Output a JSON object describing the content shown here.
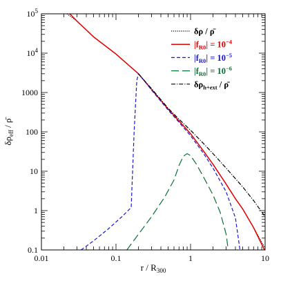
{
  "chart_data": {
    "type": "line",
    "xlabel": "r / R",
    "xlabel_sub": "300",
    "ylabel": "δρ",
    "ylabel_sub": "eff",
    "ylabel_tail": " / ρ̄",
    "xscale": "log",
    "yscale": "log",
    "xlim": [
      0.01,
      10
    ],
    "ylim": [
      0.1,
      100000
    ],
    "grid": false,
    "legend_position": "top-right",
    "x_ticks": [
      {
        "value": 0.01,
        "label": "0.01"
      },
      {
        "value": 0.1,
        "label": "0.1"
      },
      {
        "value": 1,
        "label": "1"
      },
      {
        "value": 10,
        "label": "10"
      }
    ],
    "y_ticks": [
      {
        "value": 0.1,
        "label": "0.1",
        "base": "0.1",
        "exp": ""
      },
      {
        "value": 1,
        "label": "1",
        "base": "1",
        "exp": ""
      },
      {
        "value": 10,
        "label": "10",
        "base": "10",
        "exp": ""
      },
      {
        "value": 100,
        "label": "100",
        "base": "100",
        "exp": ""
      },
      {
        "value": 1000,
        "label": "1000",
        "base": "1000",
        "exp": ""
      },
      {
        "value": 10000,
        "label": "10^4",
        "base": "10",
        "exp": "4"
      },
      {
        "value": 100000,
        "label": "10^5",
        "base": "10",
        "exp": "5"
      }
    ],
    "series": [
      {
        "name": "δρ / ρ̄",
        "legend_parts": {
          "main": "δρ / ρ̄",
          "sub": "",
          "tail": ""
        },
        "color": "#000000",
        "style": "dotted",
        "x": [
          0.022,
          0.03,
          0.05,
          0.1,
          0.2,
          0.3,
          0.5,
          0.7,
          1.0,
          1.5,
          2.0,
          3.0,
          4.0,
          5.0,
          7.0,
          10.0
        ],
        "y": [
          100000,
          65000,
          26000,
          9500,
          3000,
          1200,
          380,
          190,
          90,
          32,
          15,
          4.7,
          2.0,
          1.1,
          0.37,
          0.11
        ]
      },
      {
        "name": "|fR0| = 10^-4",
        "legend_parts": {
          "main": "|f",
          "sub": "R0",
          "tail": "| = 10",
          "exp": "−4"
        },
        "color": "#e00000",
        "style": "solid",
        "x": [
          0.024,
          0.03,
          0.05,
          0.1,
          0.2,
          0.3,
          0.5,
          0.7,
          1.0,
          1.5,
          2.0,
          3.0,
          4.0,
          5.0,
          7.0,
          9.8
        ],
        "y": [
          100000,
          65000,
          26000,
          9500,
          3000,
          1200,
          380,
          190,
          90,
          32,
          15,
          4.7,
          2.0,
          1.1,
          0.37,
          0.1
        ]
      },
      {
        "name": "|fR0| = 10^-5",
        "legend_parts": {
          "main": "|f",
          "sub": "R0",
          "tail": "| = 10",
          "exp": "−5"
        },
        "color": "#1515d8",
        "style": "dashed",
        "x": [
          0.034,
          0.05,
          0.08,
          0.12,
          0.16,
          0.175,
          0.19,
          0.2,
          0.25,
          0.3,
          0.5,
          0.7,
          1.0,
          1.5,
          2.0,
          3.0,
          4.0,
          4.6
        ],
        "y": [
          0.1,
          0.17,
          0.35,
          0.7,
          1.2,
          100,
          2000,
          3000,
          1800,
          1150,
          360,
          175,
          80,
          28,
          12,
          3.0,
          0.65,
          0.1
        ]
      },
      {
        "name": "|fR0| = 10^-6",
        "legend_parts": {
          "main": "|f",
          "sub": "R0",
          "tail": "| = 10",
          "exp": "−6"
        },
        "color": "#0a6e32",
        "style": "longdash",
        "x": [
          0.14,
          0.2,
          0.3,
          0.45,
          0.6,
          0.7,
          0.8,
          0.9,
          1.0,
          1.2,
          1.5,
          2.0,
          2.5,
          3.0,
          3.2
        ],
        "y": [
          0.1,
          0.25,
          0.7,
          2.2,
          6.0,
          14,
          24,
          28,
          25,
          15,
          7.0,
          2.5,
          0.9,
          0.25,
          0.1
        ]
      },
      {
        "name": "δρh+ext / ρ̄",
        "legend_parts": {
          "main": "δρ",
          "sub": "h+ext",
          "tail": " / ρ̄"
        },
        "color": "#000000",
        "style": "dashdot",
        "x": [
          0.2,
          0.3,
          0.5,
          0.7,
          1.0,
          1.5,
          2.0,
          3.0,
          5.0,
          7.0,
          10.0
        ],
        "y": [
          3000,
          1250,
          400,
          210,
          110,
          50,
          28,
          12,
          4.0,
          1.8,
          0.7
        ]
      }
    ]
  }
}
